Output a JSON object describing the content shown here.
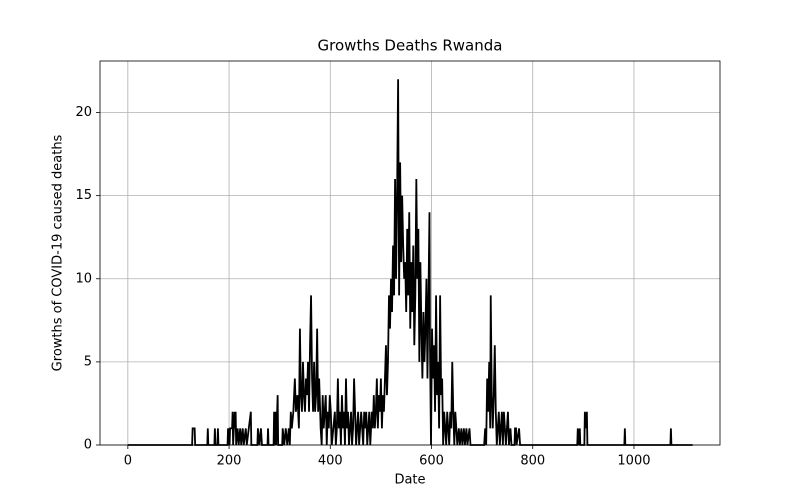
{
  "chart_data": {
    "type": "line",
    "title": "Growths Deaths Rwanda",
    "x_label": "Date",
    "y_label": "Growths of COVID-19 caused deaths",
    "x": [
      0,
      127,
      128,
      132,
      133,
      157,
      158,
      159,
      171,
      172,
      173,
      177,
      178,
      179,
      197,
      198,
      201,
      202,
      206,
      207,
      208,
      211,
      212,
      213,
      214,
      217,
      219,
      222,
      224,
      227,
      229,
      233,
      235,
      243,
      244,
      256,
      257,
      260,
      263,
      265,
      276,
      277,
      278,
      288,
      289,
      291,
      292,
      293,
      296,
      297,
      305,
      306,
      309,
      312,
      315,
      318,
      320,
      322,
      324,
      327,
      330,
      332,
      335,
      338,
      340,
      342,
      344,
      346,
      348,
      350,
      352,
      354,
      356,
      358,
      360,
      362,
      364,
      366,
      368,
      370,
      372,
      374,
      376,
      378,
      379,
      381,
      383,
      385,
      387,
      389,
      391,
      393,
      395,
      397,
      399,
      401,
      403,
      406,
      409,
      411,
      413,
      415,
      417,
      419,
      421,
      423,
      425,
      427,
      429,
      431,
      433,
      435,
      437,
      439,
      441,
      443,
      445,
      447,
      449,
      451,
      453,
      455,
      457,
      459,
      461,
      463,
      465,
      467,
      469,
      471,
      473,
      475,
      477,
      479,
      482,
      484,
      486,
      488,
      490,
      492,
      494,
      496,
      498,
      500,
      502,
      504,
      506,
      508,
      510,
      512,
      514,
      516,
      518,
      520,
      522,
      524,
      526,
      528,
      530,
      532,
      534,
      536,
      538,
      540,
      542,
      544,
      546,
      548,
      550,
      552,
      554,
      556,
      558,
      560,
      562,
      564,
      566,
      568,
      570,
      572,
      574,
      576,
      578,
      580,
      582,
      584,
      586,
      588,
      590,
      592,
      594,
      596,
      597,
      599,
      601,
      603,
      605,
      607,
      609,
      611,
      613,
      615,
      617,
      619,
      621,
      623,
      625,
      627,
      629,
      631,
      633,
      635,
      637,
      639,
      641,
      643,
      645,
      647,
      649,
      651,
      654,
      656,
      659,
      661,
      664,
      666,
      669,
      671,
      675,
      677,
      704,
      706,
      708,
      710,
      712,
      714,
      716,
      717,
      719,
      721,
      723,
      725,
      727,
      729,
      731,
      733,
      735,
      737,
      739,
      741,
      743,
      745,
      747,
      749,
      751,
      753,
      756,
      758,
      764,
      765,
      767,
      768,
      773,
      775,
      888,
      889,
      891,
      893,
      894,
      902,
      903,
      905,
      907,
      908,
      981,
      982,
      983,
      1072,
      1073,
      1074,
      1116
    ],
    "values": [
      0,
      0,
      1,
      1,
      0,
      0,
      1,
      0,
      0,
      1,
      0,
      0,
      1,
      0,
      0,
      1,
      0,
      1,
      1,
      2,
      0,
      2,
      1,
      2,
      0,
      1,
      0,
      1,
      0,
      1,
      0,
      1,
      0,
      2,
      0,
      0,
      1,
      0,
      1,
      0,
      0,
      1,
      0,
      0,
      2,
      0,
      2,
      0,
      3,
      0,
      0,
      1,
      0,
      1,
      0,
      1,
      0,
      2,
      1,
      2,
      4,
      2,
      3,
      1,
      7,
      3,
      2,
      5,
      3,
      2,
      4,
      3,
      5,
      2,
      6,
      9,
      4,
      2,
      5,
      2,
      3,
      7,
      2,
      4,
      3,
      1,
      0,
      3,
      1,
      2,
      3,
      0,
      2,
      1,
      3,
      2,
      0,
      1,
      2,
      0,
      1,
      4,
      1,
      2,
      0,
      3,
      1,
      2,
      0,
      4,
      1,
      2,
      0,
      1,
      2,
      0,
      1,
      4,
      2,
      0,
      1,
      2,
      0,
      1,
      2,
      1,
      0,
      2,
      1,
      2,
      0,
      1,
      2,
      0,
      2,
      1,
      3,
      1,
      2,
      4,
      1,
      3,
      2,
      4,
      1,
      3,
      2,
      4,
      6,
      3,
      5,
      9,
      7,
      10,
      8,
      12,
      9,
      16,
      10,
      15,
      22,
      9,
      17,
      11,
      15,
      12,
      10,
      11,
      8,
      13,
      9,
      14,
      7,
      11,
      8,
      12,
      6,
      9,
      16,
      10,
      13,
      5,
      11,
      7,
      4,
      8,
      5,
      7,
      10,
      4,
      9,
      14,
      6,
      0,
      7,
      4,
      6,
      2,
      9,
      3,
      5,
      1,
      9,
      3,
      4,
      0,
      2,
      1,
      0,
      2,
      1,
      0,
      2,
      1,
      5,
      2,
      0,
      2,
      1,
      0,
      1,
      0,
      1,
      0,
      1,
      0,
      1,
      0,
      1,
      0,
      0,
      1,
      0,
      4,
      2,
      5,
      1,
      9,
      3,
      1,
      3,
      6,
      2,
      0,
      1,
      2,
      0,
      1,
      2,
      0,
      2,
      1,
      0,
      1,
      2,
      0,
      1,
      0,
      0,
      1,
      1,
      0,
      1,
      0,
      0,
      1,
      0,
      1,
      0,
      0,
      2,
      1,
      2,
      0,
      0,
      1,
      0,
      0,
      1,
      0,
      0
    ],
    "color": "#000000",
    "xlim": [
      -55,
      1170
    ],
    "ylim": [
      0,
      23.1
    ],
    "xticks": [
      0,
      200,
      400,
      600,
      800,
      1000
    ],
    "yticks": [
      0,
      5,
      10,
      15,
      20
    ],
    "grid": true
  }
}
